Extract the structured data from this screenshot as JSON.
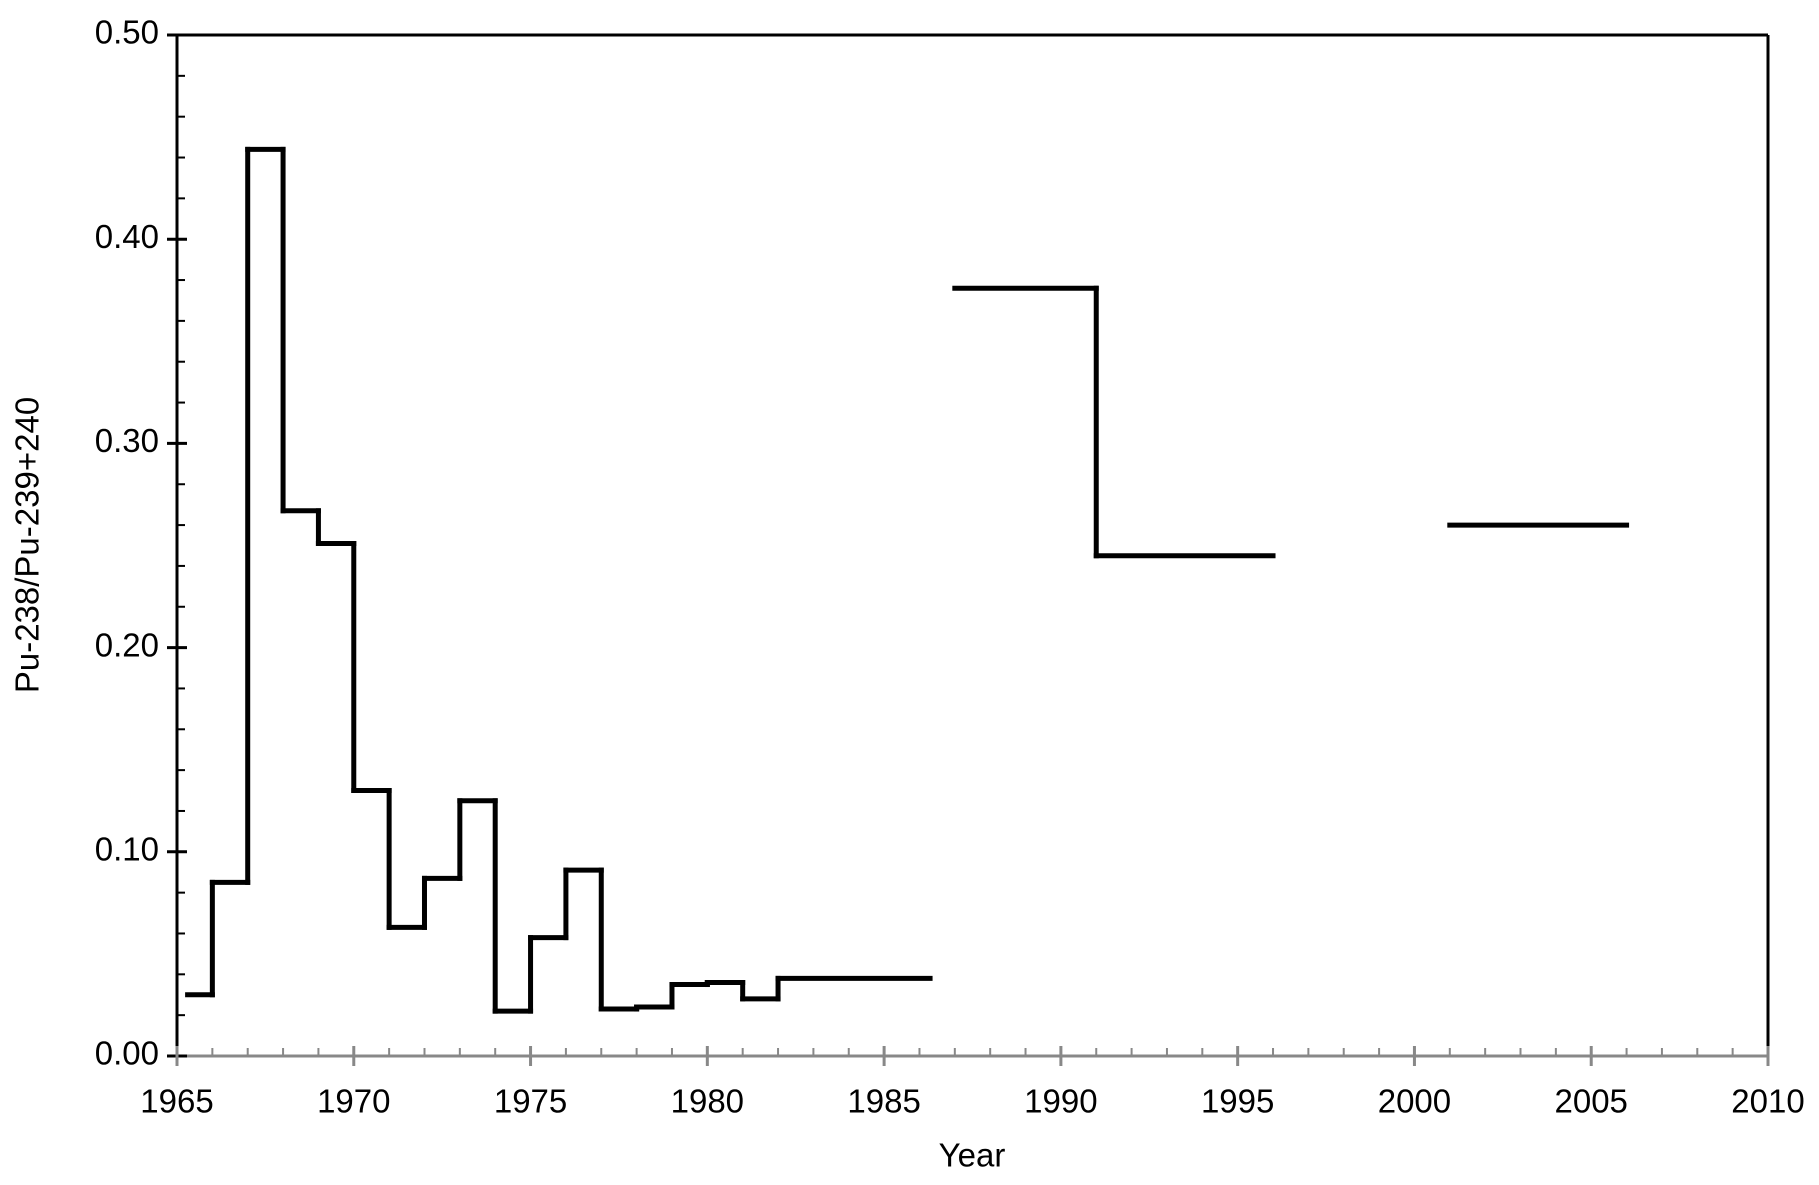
{
  "chart_data": {
    "type": "step",
    "xlabel": "Year",
    "ylabel": "Pu-238/Pu-239+240",
    "x": [
      1965.3,
      1966,
      1967,
      1968,
      1969,
      1970,
      1971,
      1972,
      1973,
      1974,
      1975,
      1976,
      1977,
      1978,
      1979,
      1980,
      1981,
      1982,
      1986.3,
      1987,
      1991,
      1996,
      2001,
      2006
    ],
    "values": [
      0.03,
      0.085,
      0.444,
      0.267,
      0.251,
      0.13,
      0.063,
      0.087,
      0.125,
      0.022,
      0.058,
      0.091,
      0.023,
      0.024,
      0.035,
      0.036,
      0.028,
      0.038,
      null,
      0.376,
      0.245,
      null,
      0.26,
      null
    ],
    "color": "#000000",
    "xlim": [
      1965,
      2010
    ],
    "xticks": [
      1965,
      1970,
      1975,
      1980,
      1985,
      1990,
      1995,
      2000,
      2005,
      2010
    ],
    "ylim": [
      0,
      0.5
    ],
    "yticks": [
      {
        "value": 0,
        "label": "0.00"
      },
      {
        "value": 0.1,
        "label": "0.10"
      },
      {
        "value": 0.2,
        "label": "0.20"
      },
      {
        "value": 0.3,
        "label": "0.30"
      },
      {
        "value": 0.4,
        "label": "0.40"
      },
      {
        "value": 0.5,
        "label": "0.50"
      }
    ],
    "xminor": 1,
    "yminor": 0.02
  }
}
